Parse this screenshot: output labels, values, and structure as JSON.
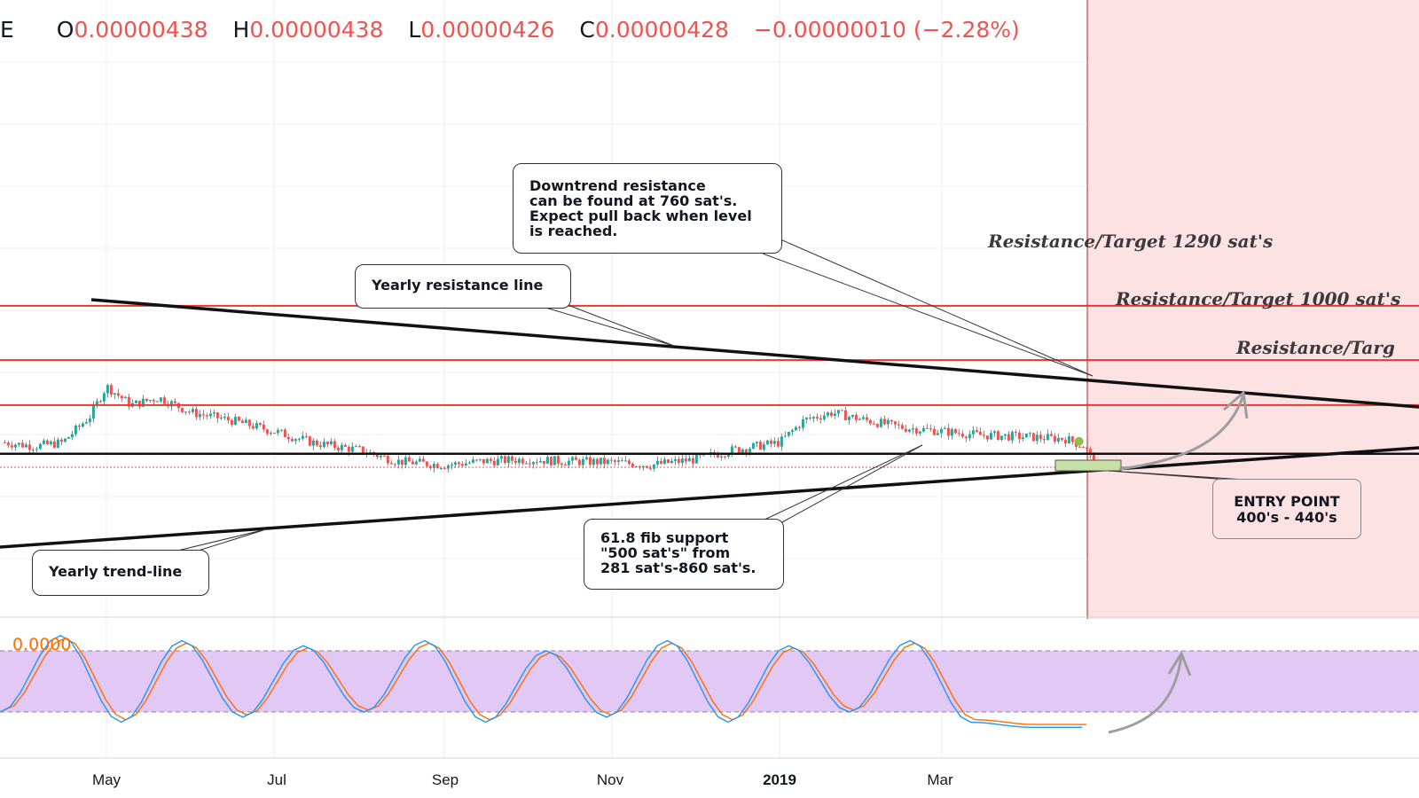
{
  "header": {
    "symbol_fragment": "E",
    "open_label": "O",
    "open_value": "0.00000438",
    "high_label": "H",
    "high_value": "0.00000438",
    "low_label": "L",
    "low_value": "0.00000426",
    "close_label": "C",
    "close_value": "0.00000428",
    "change": "−0.00000010 (−2.28%)"
  },
  "annotations": {
    "downtrend": [
      "Downtrend resistance",
      "can be found at 760 sat's.",
      "Expect pull back when level",
      "is reached."
    ],
    "yearly_resistance": "Yearly resistance line",
    "yearly_trend": "Yearly trend-line",
    "fib": [
      "61.8 fib support",
      "\"500 sat's\" from",
      "281 sat's-860 sat's."
    ],
    "entry": [
      "ENTRY POINT",
      "400's - 440's"
    ],
    "res_1290": "Resistance/Target 1290 sat's",
    "res_1000": "Resistance/Target 1000 sat's",
    "res_760": "Resistance/Targ"
  },
  "stochastic": {
    "value_label": "0.0000"
  },
  "colors": {
    "up": "#26a69a",
    "down": "#ef5350",
    "resistance": "#e53935",
    "forecast_zone": "#fde2e4",
    "stoch_band": "#e1c8f5",
    "stoch_k": "#2196f3",
    "stoch_d": "#ff6d00"
  },
  "chart_data": [
    {
      "type": "candlestick",
      "title": "",
      "x_ticks": [
        "May",
        "Jul",
        "Sep",
        "Nov",
        "2019",
        "Mar"
      ],
      "x_tick_dates": [
        "2018-05-01",
        "2018-07-01",
        "2018-09-01",
        "2018-11-01",
        "2019-01-01",
        "2019-03-01"
      ],
      "close_trend": [
        {
          "date": "2018-03-25",
          "close": 560
        },
        {
          "date": "2018-04-05",
          "close": 540
        },
        {
          "date": "2018-04-15",
          "close": 560
        },
        {
          "date": "2018-04-25",
          "close": 700
        },
        {
          "date": "2018-05-01",
          "close": 860
        },
        {
          "date": "2018-05-10",
          "close": 760
        },
        {
          "date": "2018-05-20",
          "close": 800
        },
        {
          "date": "2018-06-01",
          "close": 720
        },
        {
          "date": "2018-06-15",
          "close": 680
        },
        {
          "date": "2018-07-01",
          "close": 620
        },
        {
          "date": "2018-07-15",
          "close": 560
        },
        {
          "date": "2018-08-01",
          "close": 520
        },
        {
          "date": "2018-08-15",
          "close": 460
        },
        {
          "date": "2018-09-01",
          "close": 440
        },
        {
          "date": "2018-09-15",
          "close": 460
        },
        {
          "date": "2018-10-01",
          "close": 470
        },
        {
          "date": "2018-10-15",
          "close": 460
        },
        {
          "date": "2018-11-01",
          "close": 455
        },
        {
          "date": "2018-11-15",
          "close": 440
        },
        {
          "date": "2018-12-01",
          "close": 470
        },
        {
          "date": "2018-12-15",
          "close": 520
        },
        {
          "date": "2019-01-01",
          "close": 560
        },
        {
          "date": "2019-01-10",
          "close": 680
        },
        {
          "date": "2019-01-20",
          "close": 720
        },
        {
          "date": "2019-02-01",
          "close": 680
        },
        {
          "date": "2019-02-15",
          "close": 640
        },
        {
          "date": "2019-03-01",
          "close": 620
        },
        {
          "date": "2019-03-15",
          "close": 600
        },
        {
          "date": "2019-04-01",
          "close": 590
        },
        {
          "date": "2019-04-15",
          "close": 580
        },
        {
          "date": "2019-04-22",
          "close": 540
        },
        {
          "date": "2019-04-26",
          "close": 428
        }
      ],
      "horizontal_levels_sats": [
        1290,
        1000,
        760,
        500
      ],
      "last": {
        "open": 438,
        "high": 438,
        "low": 426,
        "close": 428
      }
    },
    {
      "type": "line",
      "title": "",
      "series": [
        {
          "values": [
            20,
            95,
            10,
            90,
            15,
            85,
            20,
            90,
            10,
            80,
            15,
            90,
            10,
            85,
            20,
            90,
            10,
            5
          ]
        }
      ],
      "bands": [
        20,
        80
      ],
      "ylim": [
        0,
        100
      ]
    }
  ]
}
